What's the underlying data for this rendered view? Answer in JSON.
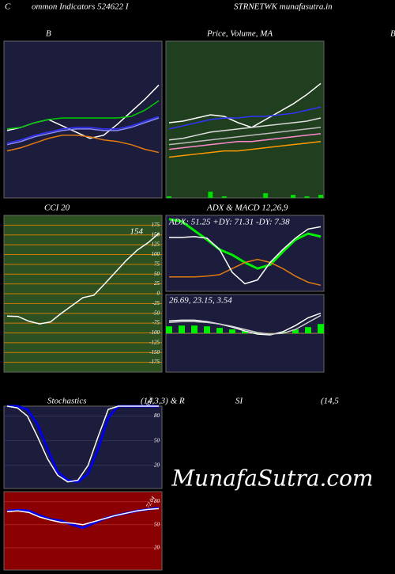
{
  "header": {
    "left": "C",
    "title": "ommon  Indicators 524622  I",
    "right": "STRNETWK munafasutra.in",
    "edge": "B"
  },
  "row_title": [
    "Stochastics",
    "(14,3,3) & R",
    "SI",
    "(14,5"
  ],
  "watermark": "MunafaSutra.com",
  "chart_data": [
    {
      "type": "line",
      "title": "B",
      "ylim": [
        0,
        100
      ],
      "series": [
        {
          "color": "#ffffff",
          "values": [
            43,
            45,
            48,
            50,
            46,
            42,
            38,
            40,
            47,
            55,
            63,
            72
          ]
        },
        {
          "color": "#00cc00",
          "values": [
            44,
            45,
            48,
            50,
            51,
            51,
            51,
            51,
            51,
            52,
            56,
            62
          ]
        },
        {
          "color": "#3333ff",
          "values": [
            35,
            37,
            40,
            42,
            44,
            45,
            45,
            44,
            44,
            46,
            49,
            52
          ]
        },
        {
          "color": "#8888ff",
          "values": [
            34,
            36,
            39,
            41,
            43,
            44,
            44,
            43,
            43,
            45,
            48,
            51
          ]
        },
        {
          "color": "#e07a10",
          "values": [
            30,
            32,
            35,
            38,
            40,
            40,
            39,
            37,
            36,
            34,
            31,
            29
          ]
        }
      ]
    },
    {
      "type": "line",
      "title": "Price, Volume, MA",
      "ylim": [
        0,
        100
      ],
      "series": [
        {
          "color": "#ffffff",
          "values": [
            48,
            49,
            51,
            53,
            52,
            48,
            45,
            50,
            55,
            60,
            66,
            73
          ]
        },
        {
          "color": "#3333ff",
          "values": [
            44,
            46,
            48,
            50,
            51,
            51,
            52,
            52,
            53,
            54,
            56,
            58
          ]
        },
        {
          "color": "#dddddd",
          "values": [
            37,
            38,
            40,
            42,
            43,
            44,
            45,
            46,
            47,
            48,
            49,
            51
          ]
        },
        {
          "color": "#bbbbbb",
          "values": [
            34,
            35,
            36,
            37,
            38,
            39,
            40,
            41,
            42,
            43,
            44,
            45
          ]
        },
        {
          "color": "#ff88cc",
          "values": [
            31,
            32,
            33,
            34,
            35,
            36,
            36,
            37,
            38,
            39,
            40,
            41
          ]
        },
        {
          "color": "#ff9900",
          "values": [
            26,
            27,
            28,
            29,
            30,
            30,
            31,
            32,
            33,
            34,
            35,
            36
          ]
        }
      ],
      "volume": [
        1,
        0,
        0,
        4,
        1,
        0,
        0,
        3,
        0,
        2,
        1,
        2
      ],
      "volume_color": "#00dd00"
    },
    {
      "type": "line",
      "title": "CCI 20",
      "ylim": [
        -200,
        200
      ],
      "yticks": [
        175,
        150,
        125,
        100,
        75,
        50,
        25,
        0,
        -25,
        -50,
        -75,
        -100,
        -125,
        -150,
        -175
      ],
      "grid_color": "#cc7a00",
      "series": [
        {
          "color": "#ffffff",
          "values": [
            -57,
            -58,
            -70,
            -77,
            -72,
            -50,
            -30,
            -10,
            -4,
            25,
            55,
            85,
            111,
            130,
            154
          ]
        }
      ],
      "annotation": "154"
    },
    {
      "type": "line",
      "title": "ADX  & MACD 12,26,9",
      "ylim": [
        0,
        100
      ],
      "series": [
        {
          "color": "#00ee00",
          "values": [
            95,
            92,
            80,
            68,
            55,
            48,
            38,
            30,
            35,
            52,
            68,
            76,
            72
          ]
        },
        {
          "color": "#e07a10",
          "values": [
            19,
            19,
            19,
            20,
            22,
            30,
            38,
            42,
            38,
            30,
            20,
            12,
            8
          ]
        },
        {
          "color": "#ffffff",
          "values": [
            71,
            71,
            72,
            70,
            55,
            25,
            10,
            15,
            38,
            55,
            70,
            82,
            85
          ]
        }
      ],
      "annotation": "ADX: 51.25  +DY: 71.31  -DY: 7.38"
    },
    {
      "type": "line",
      "ylim": [
        -50,
        50
      ],
      "series": [
        {
          "color": "#ffffff",
          "values": [
            16,
            17,
            17,
            15,
            12,
            8,
            3,
            -1,
            -2,
            2,
            10,
            20,
            26
          ]
        },
        {
          "color": "#cccccc",
          "values": [
            14,
            15,
            15,
            14,
            12,
            9,
            5,
            1,
            -1,
            0,
            5,
            14,
            23
          ]
        }
      ],
      "bars": [
        9,
        10,
        10,
        9,
        7,
        5,
        3,
        1,
        0,
        2,
        5,
        8,
        12
      ],
      "bar_color": "#00ee00",
      "annotation": "26.69,  23.15,  3.54"
    },
    {
      "type": "line",
      "ylim": [
        -8,
        92
      ],
      "yticks": [
        80,
        50,
        20
      ],
      "grid_color": "#333355",
      "series": [
        {
          "color": "#0000ee",
          "values": [
            92,
            92,
            88,
            70,
            40,
            12,
            2,
            0,
            10,
            40,
            78,
            92,
            92,
            92,
            92,
            92
          ]
        },
        {
          "color": "#ffffff",
          "values": [
            92,
            90,
            80,
            55,
            28,
            8,
            0,
            2,
            20,
            55,
            88,
            92,
            92,
            92,
            92,
            92
          ]
        }
      ],
      "annotation": "89.6"
    },
    {
      "type": "line",
      "ylim": [
        -9,
        93
      ],
      "yticks": [
        80,
        50,
        20
      ],
      "grid_color": "#aa2222",
      "series": [
        {
          "color": "#0000ee",
          "values": [
            68,
            69,
            68,
            62,
            57,
            55,
            50,
            46,
            52,
            58,
            62,
            65,
            68,
            70,
            72
          ]
        },
        {
          "color": "#ffffff",
          "values": [
            67,
            68,
            66,
            60,
            56,
            53,
            52,
            50,
            54,
            58,
            62,
            65,
            68,
            70,
            71
          ]
        }
      ],
      "annotation": "72.04"
    }
  ]
}
